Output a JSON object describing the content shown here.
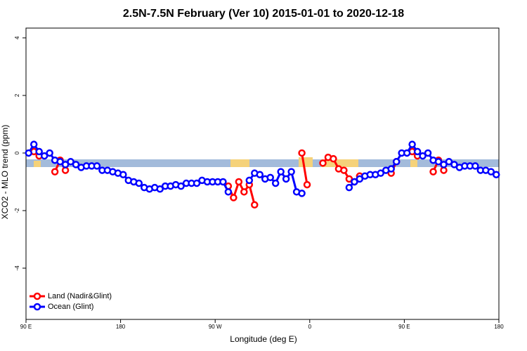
{
  "chart_data": {
    "type": "line",
    "title": "2.5N-7.5N February (Ver 10)   2015-01-01 to 2020-12-18",
    "x_label": "Longitude (deg E)",
    "y_label": "XCO2 - MLO trend (ppm)",
    "xlim": [
      90,
      540
    ],
    "ylim": [
      -5.78,
      4.34
    ],
    "xticks": [
      {
        "value": 90,
        "label": "90 E"
      },
      180,
      {
        "value": 270,
        "label": "90 W"
      },
      {
        "value": 360,
        "label": "0"
      },
      {
        "value": 450,
        "label": "90 E"
      },
      {
        "value": 540,
        "label": "180"
      }
    ],
    "yticks": [
      -4,
      -2,
      0,
      2,
      4
    ],
    "legend": "bottom-left",
    "x": [
      92.5,
      97.5,
      102.5,
      107.5,
      112.5,
      117.5,
      122.5,
      127.5,
      132.5,
      137.5,
      142.5,
      147.5,
      152.5,
      157.5,
      162.5,
      167.5,
      172.5,
      177.5,
      182.5,
      187.5,
      192.5,
      197.5,
      202.5,
      207.5,
      212.5,
      217.5,
      222.5,
      227.5,
      232.5,
      237.5,
      242.5,
      247.5,
      252.5,
      257.5,
      262.5,
      267.5,
      272.5,
      277.5,
      282.5,
      287.5,
      292.5,
      297.5,
      302.5,
      307.5,
      312.5,
      317.5,
      322.5,
      327.5,
      332.5,
      337.5,
      342.5,
      347.5,
      352.5,
      357.5,
      362.5,
      367.5,
      372.5,
      377.5,
      382.5,
      387.5,
      392.5,
      397.5,
      402.5,
      407.5,
      412.5,
      417.5,
      422.5,
      427.5,
      432.5,
      437.5,
      442.5,
      447.5,
      452.5,
      457.5,
      462.5,
      467.5,
      472.5,
      477.5,
      482.5,
      487.5,
      492.5,
      497.5,
      502.5,
      507.5,
      512.5,
      517.5,
      522.5,
      527.5,
      532.5,
      537.5
    ],
    "series": [
      {
        "name": "Land (Nadir&Glint)",
        "color": "#ff0000",
        "values": [
          null,
          0.05,
          -0.1,
          null,
          null,
          -0.65,
          -0.25,
          -0.6,
          null,
          null,
          null,
          null,
          null,
          null,
          null,
          null,
          null,
          null,
          null,
          null,
          null,
          null,
          null,
          null,
          null,
          null,
          null,
          null,
          null,
          null,
          null,
          null,
          null,
          null,
          null,
          null,
          null,
          null,
          -1.15,
          -1.55,
          -1.0,
          -1.35,
          -1.1,
          -1.8,
          null,
          null,
          null,
          null,
          null,
          null,
          null,
          null,
          0,
          -1.1,
          null,
          null,
          -0.35,
          -0.15,
          -0.2,
          -0.55,
          -0.6,
          -0.9,
          -1.0,
          -0.8,
          null,
          null,
          null,
          null,
          null,
          -0.7,
          -0.3,
          null,
          null,
          0.05,
          -0.1,
          null,
          null,
          -0.65,
          -0.25,
          -0.6,
          null,
          null,
          null,
          null,
          null,
          null,
          null,
          null,
          null,
          null
        ]
      },
      {
        "name": "Ocean (Glint)",
        "color": "#0000ff",
        "values": [
          0,
          0.3,
          0.05,
          -0.1,
          0,
          -0.25,
          -0.3,
          -0.4,
          -0.3,
          -0.4,
          -0.5,
          -0.45,
          -0.45,
          -0.45,
          -0.6,
          -0.6,
          -0.65,
          -0.7,
          -0.75,
          -0.95,
          -1.0,
          -1.05,
          -1.2,
          -1.25,
          -1.2,
          -1.25,
          -1.15,
          -1.15,
          -1.1,
          -1.15,
          -1.05,
          -1.05,
          -1.05,
          -0.95,
          -1.0,
          -1.0,
          -1.0,
          -1.0,
          -1.35,
          null,
          null,
          null,
          -0.95,
          -0.7,
          -0.75,
          -0.9,
          -0.85,
          -1.05,
          -0.65,
          -0.9,
          -0.65,
          -1.35,
          -1.4,
          null,
          null,
          null,
          null,
          null,
          null,
          null,
          null,
          -1.2,
          -1.0,
          -0.9,
          -0.8,
          -0.75,
          -0.75,
          -0.7,
          -0.6,
          -0.55,
          -0.3,
          0,
          0,
          0.3,
          0.05,
          -0.1,
          0,
          -0.25,
          -0.3,
          -0.4,
          -0.3,
          -0.4,
          -0.5,
          -0.45,
          -0.45,
          -0.45,
          -0.6,
          -0.6,
          -0.65,
          -0.75
        ]
      }
    ]
  }
}
